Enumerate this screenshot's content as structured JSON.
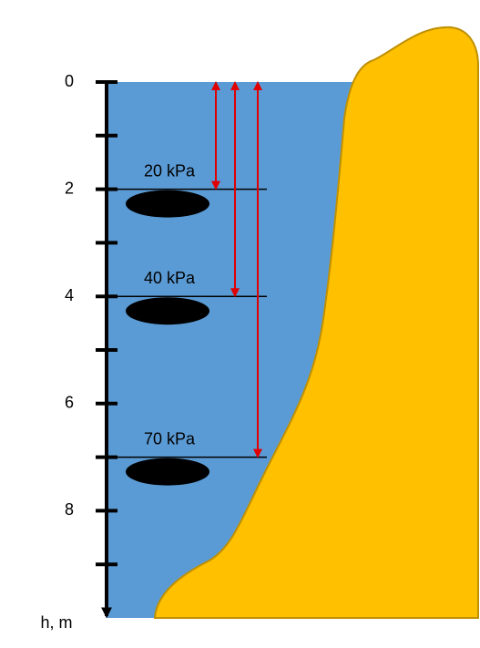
{
  "axis": {
    "label": "h, m",
    "lim": [
      0,
      10
    ],
    "ticks": [
      0,
      2,
      4,
      6,
      8
    ],
    "minor_ticks": [
      1,
      3,
      5,
      7,
      9
    ]
  },
  "levels": [
    {
      "depth": 2,
      "label": "20 kPa"
    },
    {
      "depth": 4,
      "label": "40 kPa"
    },
    {
      "depth": 7,
      "label": "70 kPa"
    }
  ]
}
